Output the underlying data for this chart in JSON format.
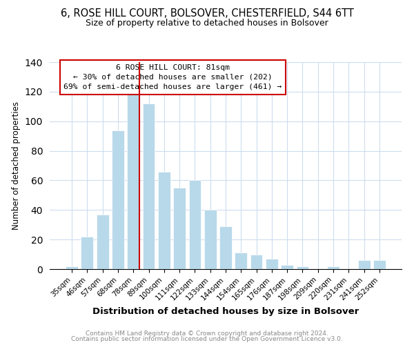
{
  "title": "6, ROSE HILL COURT, BOLSOVER, CHESTERFIELD, S44 6TT",
  "subtitle": "Size of property relative to detached houses in Bolsover",
  "xlabel": "Distribution of detached houses by size in Bolsover",
  "ylabel": "Number of detached properties",
  "bar_color": "#b8d9ea",
  "categories": [
    "35sqm",
    "46sqm",
    "57sqm",
    "68sqm",
    "78sqm",
    "89sqm",
    "100sqm",
    "111sqm",
    "122sqm",
    "133sqm",
    "144sqm",
    "154sqm",
    "165sqm",
    "176sqm",
    "187sqm",
    "198sqm",
    "209sqm",
    "220sqm",
    "231sqm",
    "241sqm",
    "252sqm"
  ],
  "values": [
    2,
    22,
    37,
    94,
    118,
    112,
    66,
    55,
    60,
    40,
    29,
    11,
    10,
    7,
    3,
    2,
    0,
    2,
    0,
    6,
    6
  ],
  "ylim": [
    0,
    140
  ],
  "yticks": [
    0,
    20,
    40,
    60,
    80,
    100,
    120,
    140
  ],
  "property_line_label": "6 ROSE HILL COURT: 81sqm",
  "annotation_line1": "← 30% of detached houses are smaller (202)",
  "annotation_line2": "69% of semi-detached houses are larger (461) →",
  "footer_line1": "Contains HM Land Registry data © Crown copyright and database right 2024.",
  "footer_line2": "Contains public sector information licensed under the Open Government Licence v3.0.",
  "line_color": "#cc0000",
  "box_edge_color": "#cc0000",
  "background_color": "#ffffff"
}
